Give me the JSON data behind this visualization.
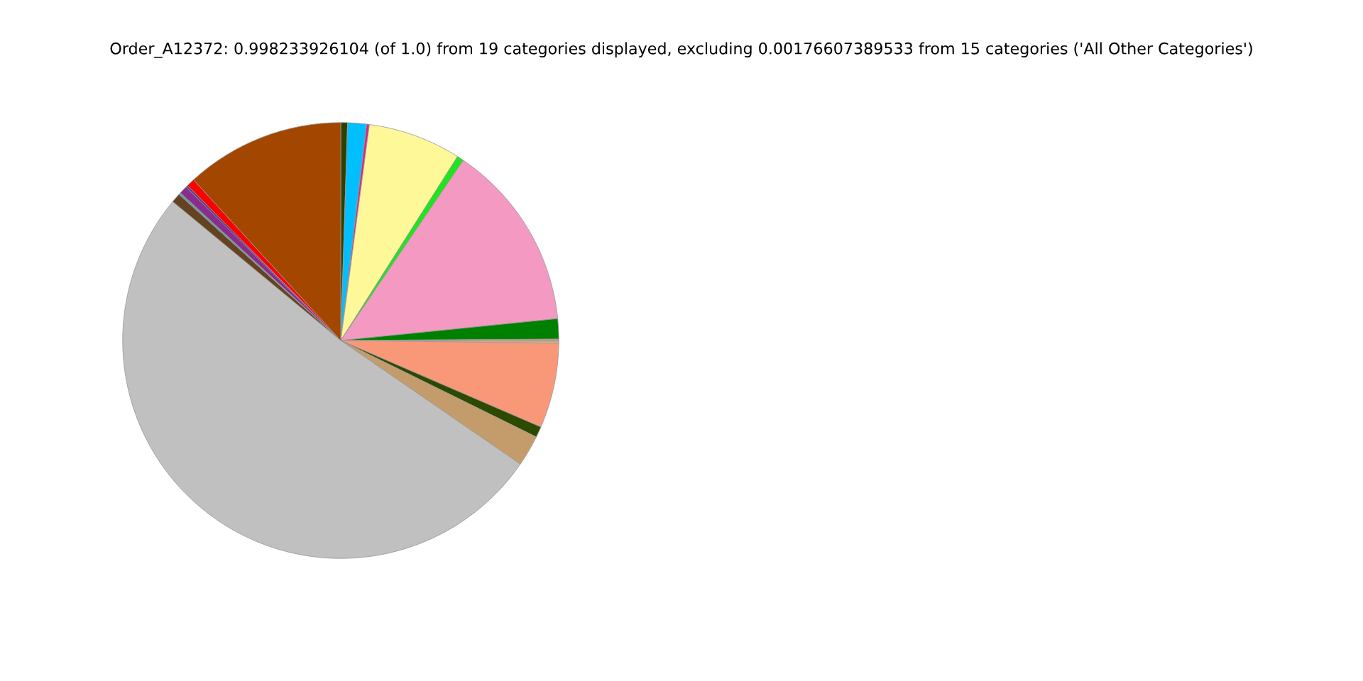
{
  "chart_data": {
    "type": "pie",
    "title": "Order_A12372: 0.998233926104 (of 1.0) from 19 categories displayed, excluding 0.00176607389533 from 15 categories ('All Other Categories')",
    "categories": [
      null,
      null,
      null,
      null,
      null,
      null,
      null,
      null,
      null,
      null,
      null,
      null,
      null,
      null,
      null,
      null,
      null,
      null,
      null
    ],
    "values": [
      0.5,
      1.4,
      0.2,
      6.9,
      0.5,
      13.9,
      1.5,
      0.15,
      0.15,
      6.3,
      0.8,
      2.3,
      51.4,
      0.7,
      0.15,
      0.6,
      0.15,
      0.6,
      11.8
    ],
    "colors": [
      "#2d4000",
      "#00bfff",
      "#e0218a",
      "#fff899",
      "#1ee51e",
      "#f49ac2",
      "#008000",
      "#c8a078",
      "#d2b48c",
      "#f99879",
      "#2d4a00",
      "#c49c6c",
      "#c0c0c0",
      "#654321",
      "#5f9ea0",
      "#8b2b8b",
      "#483d8b",
      "#ff0000",
      "#a34700"
    ]
  }
}
